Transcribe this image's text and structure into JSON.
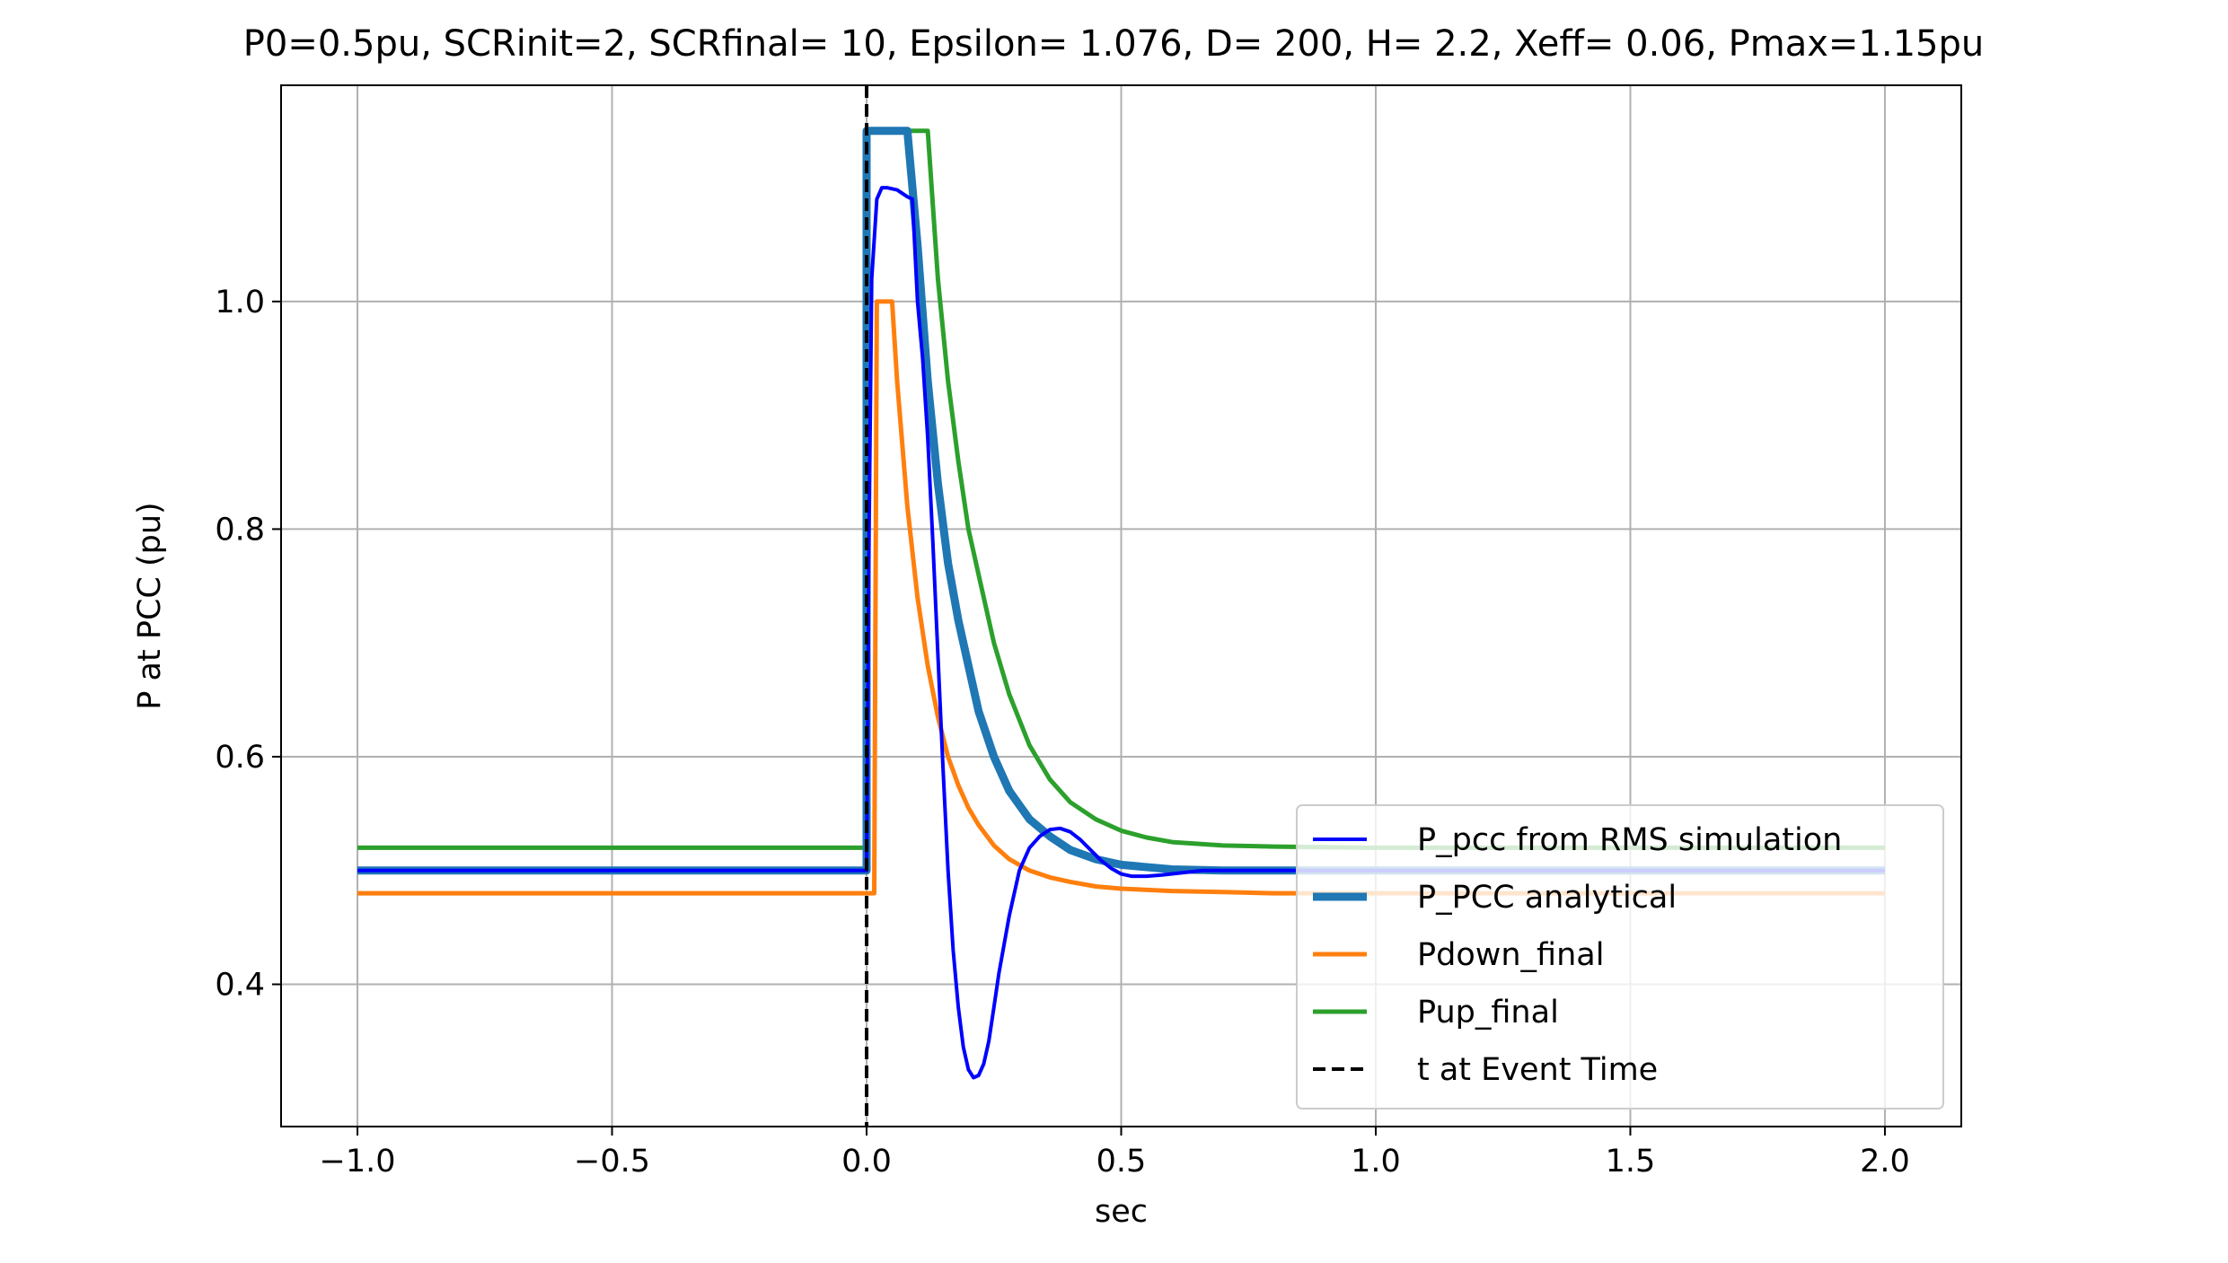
{
  "chart_data": {
    "type": "line",
    "title": "P0=0.5pu, SCRinit=2, SCRfinal= 10, Epsilon= 1.076, D= 200, H= 2.2, Xeff= 0.06, Pmax=1.15pu",
    "xlabel": "sec",
    "ylabel": "P at PCC (pu)",
    "xlim": [
      -1.15,
      2.15
    ],
    "ylim": [
      0.275,
      1.19
    ],
    "xticks": [
      -1.0,
      -0.5,
      0.0,
      0.5,
      1.0,
      1.5,
      2.0
    ],
    "xtick_labels": [
      "−1.0",
      "−0.5",
      "0.0",
      "0.5",
      "1.0",
      "1.5",
      "2.0"
    ],
    "yticks": [
      0.4,
      0.6,
      0.8,
      1.0
    ],
    "ytick_labels": [
      "0.4",
      "0.6",
      "0.8",
      "1.0"
    ],
    "grid": true,
    "legend_position": "lower-right",
    "series": [
      {
        "name": "P_pcc from RMS simulation",
        "color": "#0000ff",
        "style": "solid",
        "weight": "thin",
        "x": [
          -1.0,
          0.0,
          0.005,
          0.01,
          0.02,
          0.03,
          0.04,
          0.06,
          0.08,
          0.09,
          0.1,
          0.11,
          0.12,
          0.13,
          0.14,
          0.15,
          0.16,
          0.17,
          0.18,
          0.19,
          0.2,
          0.21,
          0.22,
          0.23,
          0.24,
          0.25,
          0.26,
          0.28,
          0.3,
          0.32,
          0.34,
          0.36,
          0.38,
          0.4,
          0.42,
          0.44,
          0.46,
          0.48,
          0.5,
          0.52,
          0.55,
          0.58,
          0.62,
          0.66,
          0.7,
          0.75,
          0.8,
          0.9,
          1.0,
          1.2,
          1.4,
          1.6,
          1.8,
          2.0
        ],
        "y": [
          0.5,
          0.5,
          0.8,
          1.02,
          1.09,
          1.1,
          1.1,
          1.098,
          1.092,
          1.09,
          1.0,
          0.95,
          0.88,
          0.79,
          0.69,
          0.59,
          0.5,
          0.43,
          0.38,
          0.345,
          0.325,
          0.318,
          0.32,
          0.33,
          0.35,
          0.38,
          0.41,
          0.46,
          0.5,
          0.52,
          0.53,
          0.536,
          0.537,
          0.534,
          0.527,
          0.518,
          0.509,
          0.502,
          0.497,
          0.495,
          0.495,
          0.496,
          0.498,
          0.5,
          0.5,
          0.5,
          0.5,
          0.5,
          0.5,
          0.5,
          0.5,
          0.5,
          0.5,
          0.5
        ]
      },
      {
        "name": "P_PCC analytical",
        "color": "#1f77b4",
        "style": "solid",
        "weight": "thick",
        "x": [
          -1.0,
          0.0,
          0.0,
          0.08,
          0.1,
          0.12,
          0.14,
          0.16,
          0.18,
          0.2,
          0.22,
          0.25,
          0.28,
          0.32,
          0.36,
          0.4,
          0.45,
          0.5,
          0.6,
          0.7,
          0.8,
          1.0,
          1.5,
          2.0
        ],
        "y": [
          0.5,
          0.5,
          1.15,
          1.15,
          1.05,
          0.93,
          0.84,
          0.77,
          0.72,
          0.68,
          0.64,
          0.6,
          0.57,
          0.545,
          0.53,
          0.518,
          0.51,
          0.505,
          0.501,
          0.5,
          0.5,
          0.5,
          0.5,
          0.5
        ]
      },
      {
        "name": "Pdown_final",
        "color": "#ff7f0e",
        "style": "solid",
        "weight": "normal",
        "x": [
          -1.0,
          0.0,
          0.015,
          0.02,
          0.05,
          0.06,
          0.08,
          0.1,
          0.12,
          0.14,
          0.16,
          0.18,
          0.2,
          0.22,
          0.25,
          0.28,
          0.32,
          0.36,
          0.4,
          0.45,
          0.5,
          0.6,
          0.7,
          0.8,
          1.0,
          1.5,
          2.0
        ],
        "y": [
          0.48,
          0.48,
          0.48,
          1.0,
          1.0,
          0.93,
          0.82,
          0.74,
          0.68,
          0.635,
          0.6,
          0.575,
          0.555,
          0.54,
          0.522,
          0.51,
          0.5,
          0.494,
          0.49,
          0.486,
          0.484,
          0.482,
          0.481,
          0.48,
          0.48,
          0.48,
          0.48
        ]
      },
      {
        "name": "Pup_final",
        "color": "#2ca02c",
        "style": "solid",
        "weight": "normal",
        "x": [
          -1.0,
          0.0,
          0.0,
          0.12,
          0.14,
          0.16,
          0.18,
          0.2,
          0.22,
          0.25,
          0.28,
          0.32,
          0.36,
          0.4,
          0.45,
          0.5,
          0.55,
          0.6,
          0.7,
          0.8,
          1.0,
          1.5,
          2.0
        ],
        "y": [
          0.52,
          0.52,
          1.15,
          1.15,
          1.02,
          0.93,
          0.86,
          0.8,
          0.76,
          0.7,
          0.655,
          0.61,
          0.58,
          0.56,
          0.545,
          0.535,
          0.529,
          0.525,
          0.522,
          0.521,
          0.52,
          0.52,
          0.52
        ]
      }
    ],
    "vlines": [
      {
        "name": "t at Event Time",
        "x": 0.0,
        "color": "#000000",
        "style": "dashed"
      }
    ]
  }
}
